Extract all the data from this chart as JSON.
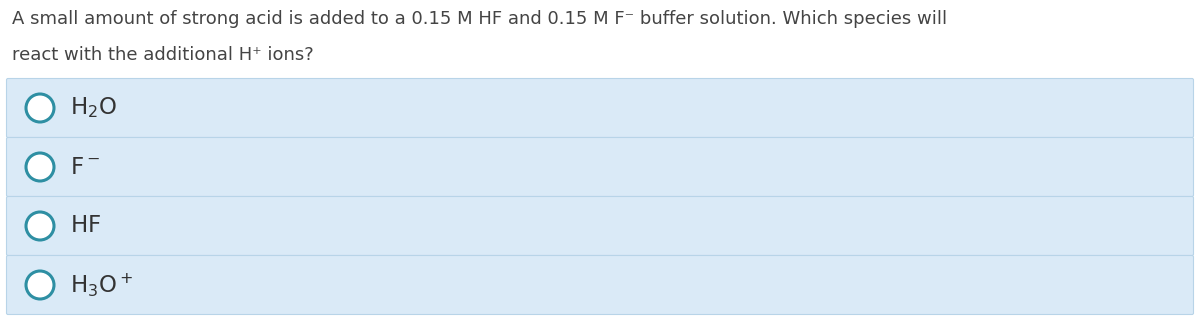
{
  "question_line1": "A small amount of strong acid is added to a 0.15 M HF and 0.15 M F⁻ buffer solution. Which species will",
  "question_line2": "react with the additional H⁺ ions?",
  "option_box_color": "#daeaf7",
  "option_box_edge_color": "#b8d4e8",
  "circle_edge_color": "#2e8fa3",
  "circle_face_color": "#ffffff",
  "question_color": "#444444",
  "option_text_color": "#333333",
  "background_color": "#ffffff",
  "question_fontsize": 13.0,
  "option_fontsize": 16.5,
  "option_labels": [
    "$\\mathrm{H_2O}$",
    "$\\mathrm{F^-}$",
    "$\\mathrm{HF}$",
    "$\\mathrm{H_3O^+}$"
  ],
  "fig_width": 12.0,
  "fig_height": 3.25,
  "dpi": 100
}
